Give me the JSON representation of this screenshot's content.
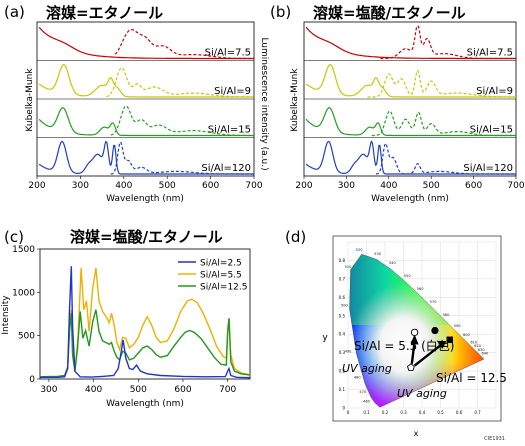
{
  "panels": {
    "a": {
      "letter": "(a)",
      "title": "溶媒=エタノール"
    },
    "b": {
      "letter": "(b)",
      "title": "溶媒=塩酸/エタノール"
    },
    "c": {
      "letter": "(c)",
      "title": "溶媒=塩酸/エタノール"
    },
    "d": {
      "letter": "(d)"
    }
  },
  "chart_data": [
    {
      "id": "a",
      "type": "line",
      "title": "溶媒=エタノール",
      "xlabel": "Wavelength (nm)",
      "ylabel_left": "Kubelka-Munk",
      "ylabel_right": "Luminescence intensity (a.u.)",
      "xlim": [
        200,
        700
      ],
      "xticks": [
        200,
        300,
        400,
        500,
        600,
        700
      ],
      "rows": [
        {
          "label": "Si/Al=7.5",
          "color": "#cc0000"
        },
        {
          "label": "Si/Al=9",
          "color": "#c8c800"
        },
        {
          "label": "Si/Al=15",
          "color": "#22a022"
        },
        {
          "label": "Si/Al=120",
          "color": "#1f3fc8"
        }
      ],
      "line_styles": {
        "absorption": "solid",
        "luminescence": "dashed"
      }
    },
    {
      "id": "b",
      "type": "line",
      "title": "溶媒=塩酸/エタノール",
      "xlabel": "Wavelength (nm)",
      "ylabel_left": "Kubelka-Munk",
      "ylabel_right": "Luminescence intensity (a.u.)",
      "xlim": [
        200,
        700
      ],
      "xticks": [
        200,
        300,
        400,
        500,
        600,
        700
      ],
      "rows": [
        {
          "label": "Si/Al=7.5",
          "color": "#cc0000"
        },
        {
          "label": "Si/Al=9",
          "color": "#c8c800"
        },
        {
          "label": "Si/Al=15",
          "color": "#22a022"
        },
        {
          "label": "Si/Al=120",
          "color": "#1f3fc8"
        }
      ]
    },
    {
      "id": "c",
      "type": "line",
      "title": "溶媒=塩酸/エタノール",
      "xlabel": "Wavelength (nm)",
      "ylabel": "Intensity",
      "xlim": [
        280,
        750
      ],
      "ylim": [
        0,
        1500
      ],
      "xticks": [
        300,
        400,
        500,
        600,
        700
      ],
      "yticks": [
        0,
        500,
        1000,
        1500
      ],
      "legend_position": "top-right",
      "series": [
        {
          "name": "Si/Al=2.5",
          "color": "#2233cc",
          "points": [
            [
              280,
              20
            ],
            [
              300,
              20
            ],
            [
              320,
              20
            ],
            [
              335,
              25
            ],
            [
              342,
              120
            ],
            [
              346,
              800
            ],
            [
              350,
              1300
            ],
            [
              353,
              600
            ],
            [
              358,
              90
            ],
            [
              370,
              25
            ],
            [
              395,
              22
            ],
            [
              420,
              30
            ],
            [
              445,
              40
            ],
            [
              455,
              120
            ],
            [
              460,
              260
            ],
            [
              466,
              450
            ],
            [
              472,
              240
            ],
            [
              480,
              120
            ],
            [
              488,
              110
            ],
            [
              496,
              160
            ],
            [
              505,
              90
            ],
            [
              520,
              60
            ],
            [
              550,
              40
            ],
            [
              600,
              30
            ],
            [
              650,
              25
            ],
            [
              695,
              28
            ],
            [
              700,
              90
            ],
            [
              703,
              120
            ],
            [
              707,
              40
            ],
            [
              720,
              20
            ],
            [
              750,
              15
            ]
          ]
        },
        {
          "name": "Si/Al=5.5",
          "color": "#f0b000",
          "points": [
            [
              280,
              25
            ],
            [
              300,
              28
            ],
            [
              320,
              30
            ],
            [
              335,
              40
            ],
            [
              342,
              150
            ],
            [
              346,
              600
            ],
            [
              350,
              800
            ],
            [
              353,
              300
            ],
            [
              358,
              100
            ],
            [
              365,
              480
            ],
            [
              372,
              1280
            ],
            [
              378,
              800
            ],
            [
              384,
              900
            ],
            [
              390,
              550
            ],
            [
              398,
              1050
            ],
            [
              405,
              1280
            ],
            [
              412,
              900
            ],
            [
              420,
              780
            ],
            [
              428,
              720
            ],
            [
              435,
              650
            ],
            [
              440,
              760
            ],
            [
              446,
              620
            ],
            [
              452,
              420
            ],
            [
              458,
              340
            ],
            [
              465,
              480
            ],
            [
              472,
              470
            ],
            [
              480,
              360
            ],
            [
              490,
              400
            ],
            [
              500,
              480
            ],
            [
              510,
              620
            ],
            [
              520,
              720
            ],
            [
              530,
              620
            ],
            [
              540,
              480
            ],
            [
              550,
              420
            ],
            [
              565,
              440
            ],
            [
              580,
              580
            ],
            [
              595,
              780
            ],
            [
              610,
              900
            ],
            [
              620,
              920
            ],
            [
              632,
              880
            ],
            [
              645,
              760
            ],
            [
              660,
              580
            ],
            [
              675,
              380
            ],
            [
              690,
              260
            ],
            [
              697,
              240
            ],
            [
              700,
              560
            ],
            [
              703,
              700
            ],
            [
              707,
              280
            ],
            [
              715,
              120
            ],
            [
              730,
              70
            ],
            [
              750,
              50
            ]
          ]
        },
        {
          "name": "Si/Al=12.5",
          "color": "#1f9a1f",
          "points": [
            [
              280,
              25
            ],
            [
              300,
              28
            ],
            [
              320,
              30
            ],
            [
              335,
              40
            ],
            [
              342,
              130
            ],
            [
              346,
              550
            ],
            [
              350,
              760
            ],
            [
              353,
              280
            ],
            [
              358,
              90
            ],
            [
              364,
              350
            ],
            [
              370,
              780
            ],
            [
              376,
              470
            ],
            [
              382,
              560
            ],
            [
              390,
              380
            ],
            [
              398,
              660
            ],
            [
              405,
              800
            ],
            [
              412,
              550
            ],
            [
              420,
              440
            ],
            [
              428,
              420
            ],
            [
              435,
              400
            ],
            [
              440,
              420
            ],
            [
              446,
              320
            ],
            [
              452,
              250
            ],
            [
              458,
              220
            ],
            [
              465,
              320
            ],
            [
              472,
              300
            ],
            [
              480,
              220
            ],
            [
              490,
              240
            ],
            [
              500,
              300
            ],
            [
              510,
              360
            ],
            [
              520,
              380
            ],
            [
              530,
              340
            ],
            [
              540,
              280
            ],
            [
              550,
              250
            ],
            [
              565,
              270
            ],
            [
              580,
              380
            ],
            [
              595,
              480
            ],
            [
              605,
              540
            ],
            [
              615,
              560
            ],
            [
              625,
              540
            ],
            [
              640,
              470
            ],
            [
              655,
              360
            ],
            [
              670,
              250
            ],
            [
              685,
              170
            ],
            [
              697,
              160
            ],
            [
              700,
              550
            ],
            [
              703,
              700
            ],
            [
              707,
              200
            ],
            [
              715,
              90
            ],
            [
              730,
              60
            ],
            [
              750,
              45
            ]
          ]
        }
      ]
    },
    {
      "id": "d",
      "type": "scatter",
      "title": "CIE1931",
      "xlabel": "x",
      "ylabel": "y",
      "xlim": [
        0,
        0.8
      ],
      "ylim": [
        0,
        0.9
      ],
      "xticks": [
        "0",
        "0.1",
        "0.2",
        "0.3",
        "0.4",
        "0.5",
        "0.6",
        "0.7"
      ],
      "yticks": [
        "0",
        "0.1",
        "0.2",
        "0.3",
        "0.4",
        "0.5",
        "0.6",
        "0.7",
        "0.8"
      ],
      "wavelength_labels": [
        "460",
        "470",
        "480",
        "490",
        "500",
        "510",
        "520",
        "530",
        "540",
        "550",
        "560",
        "570",
        "580",
        "590",
        "600",
        "610",
        "620",
        "630",
        "640"
      ],
      "points": [
        {
          "label": "Si/Al = 5.5 (白色)",
          "x": 0.47,
          "y": 0.42,
          "marker": "filled-circle"
        },
        {
          "label": "Si/Al = 12.5",
          "x": 0.55,
          "y": 0.37,
          "marker": "filled-square"
        },
        {
          "label": "",
          "x": 0.34,
          "y": 0.22,
          "marker": "open-pentagon"
        },
        {
          "label": "",
          "x": 0.36,
          "y": 0.41,
          "marker": "open-circle"
        }
      ],
      "annotations": [
        "UV aging",
        "UV aging"
      ]
    }
  ]
}
